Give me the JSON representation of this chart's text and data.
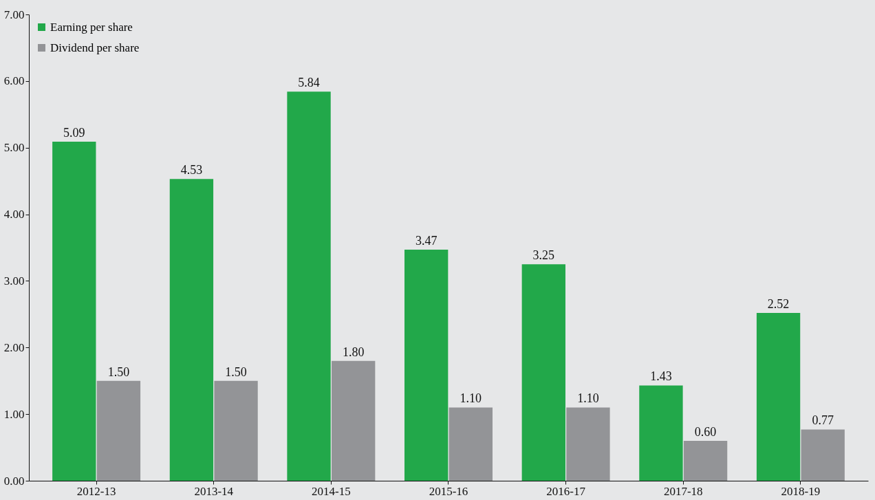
{
  "chart_data": {
    "type": "bar",
    "categories": [
      "2012-13",
      "2013-14",
      "2014-15",
      "2015-16",
      "2016-17",
      "2017-18",
      "2018-19"
    ],
    "series": [
      {
        "name": "Earning per share",
        "color": "#22a84a",
        "values": [
          5.09,
          4.53,
          5.84,
          3.47,
          3.25,
          1.43,
          2.52
        ],
        "value_labels": [
          "5.09",
          "4.53",
          "5.84",
          "3.47",
          "3.25",
          "1.43",
          "2.52"
        ]
      },
      {
        "name": "Dividend per share",
        "color": "#939497",
        "values": [
          1.5,
          1.5,
          1.8,
          1.1,
          1.1,
          0.6,
          0.77
        ],
        "value_labels": [
          "1.50",
          "1.50",
          "1.80",
          "1.10",
          "1.10",
          "0.60",
          "0.77"
        ]
      }
    ],
    "ylim": [
      0,
      7
    ],
    "yticks": [
      {
        "value": 0,
        "label": "0.00"
      },
      {
        "value": 1,
        "label": "1.00"
      },
      {
        "value": 2,
        "label": "2.00"
      },
      {
        "value": 3,
        "label": "3.00"
      },
      {
        "value": 4,
        "label": "4.00"
      },
      {
        "value": 5,
        "label": "5.00"
      },
      {
        "value": 6,
        "label": "6.00"
      },
      {
        "value": 7,
        "label": "7.00"
      }
    ],
    "grid": false,
    "legend": "top left"
  }
}
